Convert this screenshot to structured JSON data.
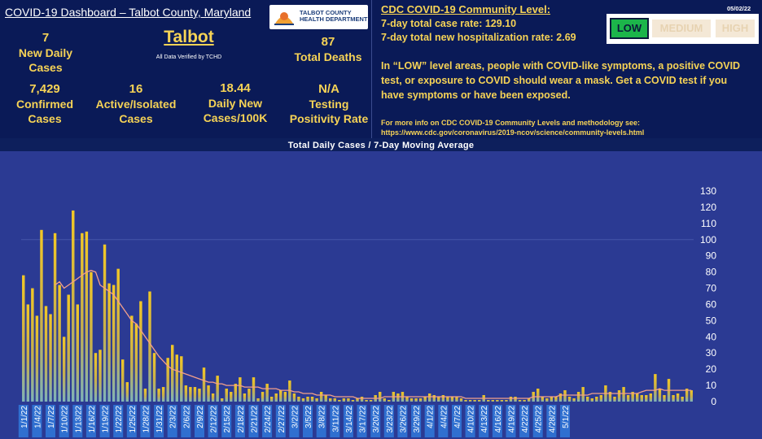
{
  "header": {
    "title": "COVID-19 Dashboard – Talbot County, Maryland",
    "logo_text_1": "TALBOT COUNTY",
    "logo_text_2": "HEALTH DEPARTMENT",
    "county": "Talbot",
    "verified": "All Data Verified by TCHD",
    "date": "05/02/22"
  },
  "stats": {
    "new_daily_cases": {
      "value": "7",
      "label": "New Daily Cases"
    },
    "total_deaths": {
      "value": "87",
      "label": "Total Deaths"
    },
    "confirmed_cases": {
      "value": "7,429",
      "label": "Confirmed Cases"
    },
    "active_cases": {
      "value": "16",
      "label": "Active/Isolated Cases"
    },
    "daily_per_100k": {
      "value": "18.44",
      "label": "Daily New Cases/100K"
    },
    "testing_positivity": {
      "value": "N/A",
      "label": "Testing Positivity Rate"
    }
  },
  "cdc": {
    "title": "CDC COVID-19 Community Level:",
    "case_rate": "7-day total case rate:  129.10",
    "hosp_rate": "7-day total new hospitalization rate: 2.69",
    "levels": [
      "LOW",
      "MEDIUM",
      "HIGH"
    ],
    "current_level": "LOW",
    "paragraph": "In “LOW” level areas, people with COVID-like symptoms, a positive COVID test, or exposure to COVID should wear a mask. Get a COVID test if you have symptoms or have been exposed.",
    "more_info": "For more info on CDC COVID-19 Community Levels and methodology see:",
    "link": "https://www.cdc.gov/coronavirus/2019-ncov/science/community-levels.html"
  },
  "colors": {
    "bar": "#e0b822",
    "line": "#f4a08a",
    "level_low": "#1cb54a",
    "text_accent": "#f6d356"
  },
  "chart_data": {
    "type": "bar",
    "title": "Total Daily Cases  / 7-Day Moving Average",
    "ylim": [
      0,
      130
    ],
    "yticks": [
      0,
      10,
      20,
      30,
      40,
      50,
      60,
      70,
      80,
      90,
      100,
      110,
      120,
      130
    ],
    "x_tick_labels": [
      "1/1/22",
      "1/4/22",
      "1/7/22",
      "1/10/22",
      "1/13/22",
      "1/16/22",
      "1/19/22",
      "1/22/22",
      "1/25/22",
      "1/28/22",
      "1/31/22",
      "2/3/22",
      "2/6/22",
      "2/9/22",
      "2/12/22",
      "2/15/22",
      "2/18/22",
      "2/21/22",
      "2/24/22",
      "2/27/22",
      "3/2/22",
      "3/5/22",
      "3/8/22",
      "3/11/22",
      "3/14/22",
      "3/17/22",
      "3/20/22",
      "3/23/22",
      "3/26/22",
      "3/29/22",
      "4/1/22",
      "4/4/22",
      "4/7/22",
      "4/10/22",
      "4/13/22",
      "4/16/22",
      "4/19/22",
      "4/22/22",
      "4/25/22",
      "4/28/22",
      "5/1/22"
    ],
    "series": [
      {
        "type": "bar",
        "values": [
          78,
          60,
          70,
          53,
          106,
          59,
          54,
          104,
          72,
          40,
          66,
          118,
          60,
          104,
          105,
          80,
          30,
          32,
          97,
          73,
          72,
          82,
          26,
          12,
          53,
          48,
          62,
          8,
          68,
          30,
          8,
          9,
          27,
          35,
          29,
          28,
          10,
          9,
          9,
          8,
          21,
          10,
          5,
          16,
          2,
          8,
          6,
          11,
          15,
          5,
          8,
          15,
          2,
          6,
          11,
          3,
          5,
          7,
          6,
          13,
          5,
          3,
          2,
          3,
          3,
          2,
          6,
          4,
          2,
          2,
          1,
          2,
          2,
          1,
          2,
          3,
          1,
          1,
          4,
          6,
          2,
          1,
          6,
          5,
          6,
          3,
          2,
          2,
          2,
          3,
          5,
          4,
          3,
          4,
          3,
          3,
          3,
          2,
          1,
          1,
          1,
          1,
          4,
          1,
          1,
          1,
          1,
          1,
          3,
          3,
          1,
          1,
          2,
          6,
          8,
          3,
          2,
          3,
          3,
          5,
          7,
          3,
          2,
          6,
          9,
          3,
          2,
          3,
          4,
          10,
          6,
          3,
          7,
          9,
          4,
          6,
          5,
          4,
          4,
          5,
          17,
          8,
          4,
          14,
          4,
          5,
          3,
          8,
          7
        ]
      },
      {
        "type": "line",
        "name": "7-Day Moving Average",
        "values": [
          null,
          null,
          null,
          null,
          null,
          null,
          null,
          72,
          74,
          70,
          72,
          74,
          76,
          78,
          80,
          81,
          80,
          72,
          70,
          68,
          66,
          62,
          58,
          54,
          50,
          48,
          44,
          40,
          36,
          32,
          28,
          25,
          22,
          20,
          19,
          18,
          17,
          16,
          15,
          14,
          13,
          12,
          12,
          11,
          11,
          10,
          10,
          10,
          10,
          9,
          9,
          9,
          9,
          8,
          8,
          8,
          8,
          7,
          7,
          7,
          6,
          6,
          5,
          5,
          5,
          4,
          4,
          4,
          4,
          3,
          3,
          3,
          3,
          3,
          2,
          2,
          2,
          2,
          2,
          2,
          3,
          3,
          3,
          3,
          3,
          3,
          3,
          3,
          3,
          3,
          3,
          3,
          3,
          3,
          3,
          3,
          3,
          3,
          2,
          2,
          2,
          2,
          2,
          2,
          2,
          2,
          2,
          2,
          2,
          2,
          2,
          2,
          2,
          3,
          3,
          3,
          3,
          3,
          3,
          4,
          4,
          4,
          4,
          4,
          4,
          4,
          5,
          5,
          5,
          5,
          5,
          5,
          5,
          5,
          5,
          5,
          5,
          6,
          7,
          7,
          7,
          8,
          7,
          7,
          7,
          7,
          7,
          7,
          7
        ]
      }
    ]
  }
}
